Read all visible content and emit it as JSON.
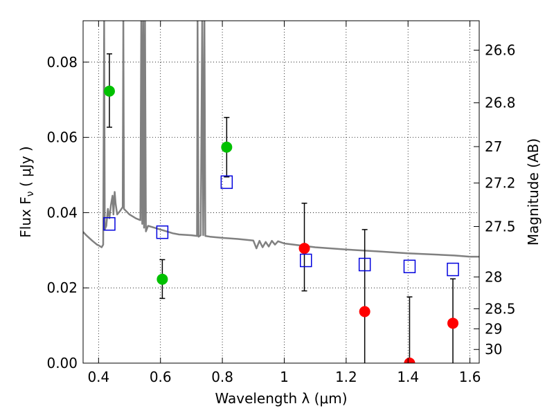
{
  "chart_data": {
    "type": "scatter",
    "xlabel": "Wavelength  λ (μm)",
    "ylabel": "Flux  F",
    "ylabel_sub": "ν",
    "ylabel_unit": "  ( μJy )",
    "y2label": "Magnitude (AB)",
    "xlim": [
      0.35,
      1.63
    ],
    "ylim": [
      0.0,
      0.091
    ],
    "grid": true,
    "x_ticks": [
      {
        "value": 0.4,
        "label": "0.4"
      },
      {
        "value": 0.6,
        "label": "0.6"
      },
      {
        "value": 0.8,
        "label": "0.8"
      },
      {
        "value": 1.0,
        "label": "1"
      },
      {
        "value": 1.2,
        "label": "1.2"
      },
      {
        "value": 1.4,
        "label": "1.4"
      },
      {
        "value": 1.6,
        "label": "1.6"
      }
    ],
    "y_ticks": [
      {
        "value": 0.0,
        "label": "0.00"
      },
      {
        "value": 0.02,
        "label": "0.02"
      },
      {
        "value": 0.04,
        "label": "0.04"
      },
      {
        "value": 0.06,
        "label": "0.06"
      },
      {
        "value": 0.08,
        "label": "0.08"
      }
    ],
    "y2_ticks": [
      {
        "value": 26.6,
        "label": "26.6"
      },
      {
        "value": 26.8,
        "label": "26.8"
      },
      {
        "value": 27.0,
        "label": "27"
      },
      {
        "value": 27.2,
        "label": "27.2"
      },
      {
        "value": 27.5,
        "label": "27.5"
      },
      {
        "value": 28.0,
        "label": "28"
      },
      {
        "value": 28.5,
        "label": "28.5"
      },
      {
        "value": 29.0,
        "label": "29"
      },
      {
        "value": 30.0,
        "label": "30"
      }
    ],
    "series": [
      {
        "marker": "circle",
        "color": "#00c000",
        "points": [
          {
            "x": 0.435,
            "y": 0.0723,
            "err_lo": 0.0627,
            "err_hi": 0.0822
          },
          {
            "x": 0.606,
            "y": 0.0223,
            "err_lo": 0.0172,
            "err_hi": 0.0275
          },
          {
            "x": 0.814,
            "y": 0.0574,
            "err_lo": 0.0495,
            "err_hi": 0.0653
          }
        ]
      },
      {
        "marker": "circle",
        "color": "#ff0000",
        "points": [
          {
            "x": 1.065,
            "y": 0.0305,
            "err_lo": 0.0192,
            "err_hi": 0.0425
          },
          {
            "x": 1.26,
            "y": 0.0137,
            "err_lo": 0.0,
            "err_hi": 0.0355
          },
          {
            "x": 1.405,
            "y": 0.0,
            "err_lo": 0.0,
            "err_hi": 0.0176
          },
          {
            "x": 1.545,
            "y": 0.0106,
            "err_lo": 0.0,
            "err_hi": 0.0224
          }
        ]
      },
      {
        "marker": "square",
        "color": "#0000dd",
        "points": [
          {
            "x": 0.435,
            "y": 0.037
          },
          {
            "x": 0.606,
            "y": 0.0348
          },
          {
            "x": 0.814,
            "y": 0.0481
          },
          {
            "x": 1.07,
            "y": 0.0273
          },
          {
            "x": 1.26,
            "y": 0.0262
          },
          {
            "x": 1.405,
            "y": 0.0257
          },
          {
            "x": 1.545,
            "y": 0.0249
          }
        ]
      },
      {
        "marker": "line",
        "color": "#808080",
        "points": [
          {
            "x": 0.35,
            "y": 0.0349
          },
          {
            "x": 0.36,
            "y": 0.034
          },
          {
            "x": 0.38,
            "y": 0.0325
          },
          {
            "x": 0.395,
            "y": 0.0315
          },
          {
            "x": 0.4,
            "y": 0.0313
          },
          {
            "x": 0.41,
            "y": 0.0308
          },
          {
            "x": 0.415,
            "y": 0.0315
          },
          {
            "x": 0.418,
            "y": 0.091
          },
          {
            "x": 0.42,
            "y": 0.0355
          },
          {
            "x": 0.425,
            "y": 0.0365
          },
          {
            "x": 0.43,
            "y": 0.041
          },
          {
            "x": 0.435,
            "y": 0.0385
          },
          {
            "x": 0.44,
            "y": 0.042
          },
          {
            "x": 0.445,
            "y": 0.0445
          },
          {
            "x": 0.448,
            "y": 0.0395
          },
          {
            "x": 0.452,
            "y": 0.0455
          },
          {
            "x": 0.455,
            "y": 0.0425
          },
          {
            "x": 0.46,
            "y": 0.0395
          },
          {
            "x": 0.47,
            "y": 0.0405
          },
          {
            "x": 0.478,
            "y": 0.0415
          },
          {
            "x": 0.48,
            "y": 0.091
          },
          {
            "x": 0.482,
            "y": 0.041
          },
          {
            "x": 0.5,
            "y": 0.0395
          },
          {
            "x": 0.52,
            "y": 0.0385
          },
          {
            "x": 0.535,
            "y": 0.038
          },
          {
            "x": 0.538,
            "y": 0.091
          },
          {
            "x": 0.541,
            "y": 0.037
          },
          {
            "x": 0.544,
            "y": 0.091
          },
          {
            "x": 0.547,
            "y": 0.036
          },
          {
            "x": 0.55,
            "y": 0.091
          },
          {
            "x": 0.553,
            "y": 0.035
          },
          {
            "x": 0.56,
            "y": 0.0365
          },
          {
            "x": 0.58,
            "y": 0.036
          },
          {
            "x": 0.6,
            "y": 0.0355
          },
          {
            "x": 0.62,
            "y": 0.035
          },
          {
            "x": 0.64,
            "y": 0.0345
          },
          {
            "x": 0.66,
            "y": 0.0342
          },
          {
            "x": 0.7,
            "y": 0.034
          },
          {
            "x": 0.718,
            "y": 0.0338
          },
          {
            "x": 0.72,
            "y": 0.091
          },
          {
            "x": 0.723,
            "y": 0.0336
          },
          {
            "x": 0.73,
            "y": 0.034
          },
          {
            "x": 0.735,
            "y": 0.091
          },
          {
            "x": 0.738,
            "y": 0.034
          },
          {
            "x": 0.742,
            "y": 0.091
          },
          {
            "x": 0.745,
            "y": 0.0338
          },
          {
            "x": 0.76,
            "y": 0.0336
          },
          {
            "x": 0.8,
            "y": 0.0333
          },
          {
            "x": 0.85,
            "y": 0.033
          },
          {
            "x": 0.9,
            "y": 0.0326
          },
          {
            "x": 0.91,
            "y": 0.0305
          },
          {
            "x": 0.92,
            "y": 0.0325
          },
          {
            "x": 0.93,
            "y": 0.0308
          },
          {
            "x": 0.94,
            "y": 0.0322
          },
          {
            "x": 0.95,
            "y": 0.031
          },
          {
            "x": 0.96,
            "y": 0.0325
          },
          {
            "x": 0.97,
            "y": 0.0315
          },
          {
            "x": 0.98,
            "y": 0.0324
          },
          {
            "x": 1.0,
            "y": 0.0318
          },
          {
            "x": 1.05,
            "y": 0.0313
          },
          {
            "x": 1.1,
            "y": 0.0308
          },
          {
            "x": 1.2,
            "y": 0.0302
          },
          {
            "x": 1.3,
            "y": 0.0297
          },
          {
            "x": 1.4,
            "y": 0.0292
          },
          {
            "x": 1.5,
            "y": 0.0288
          },
          {
            "x": 1.55,
            "y": 0.0286
          },
          {
            "x": 1.6,
            "y": 0.0283
          },
          {
            "x": 1.63,
            "y": 0.0283
          }
        ]
      }
    ]
  }
}
